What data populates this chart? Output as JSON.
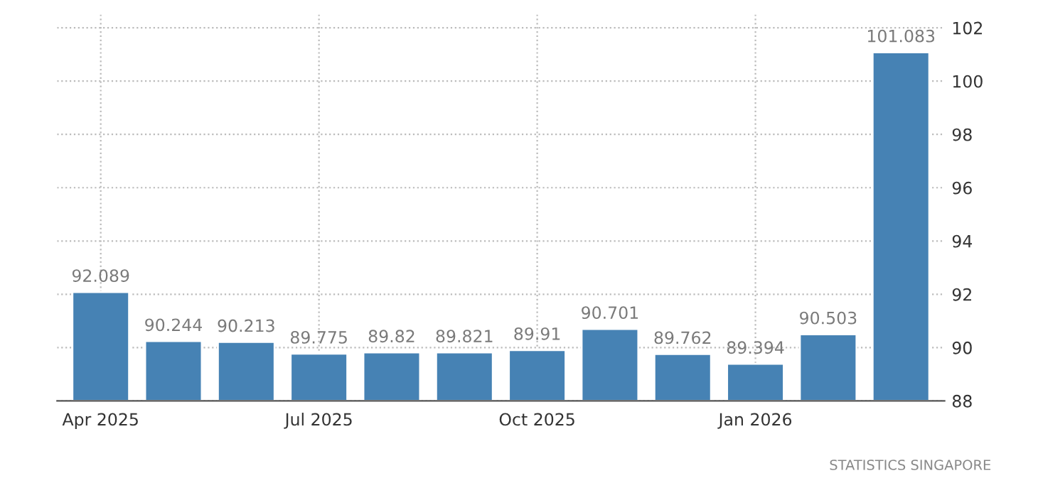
{
  "chart_data": {
    "type": "bar",
    "categories": [
      "Apr 2025",
      null,
      null,
      "Jul 2025",
      null,
      null,
      "Oct 2025",
      null,
      null,
      "Jan 2026",
      null,
      null
    ],
    "values": [
      92.089,
      90.244,
      90.213,
      89.775,
      89.82,
      89.821,
      89.91,
      90.701,
      89.762,
      89.394,
      90.503,
      101.083
    ],
    "color": "#4682b4",
    "ylim": [
      88,
      102.5
    ],
    "yticks": [
      88,
      90,
      92,
      94,
      96,
      98,
      100,
      102
    ],
    "grid": true,
    "data_labels": true,
    "annotations": [
      "STATISTICS SINGAPORE"
    ]
  }
}
